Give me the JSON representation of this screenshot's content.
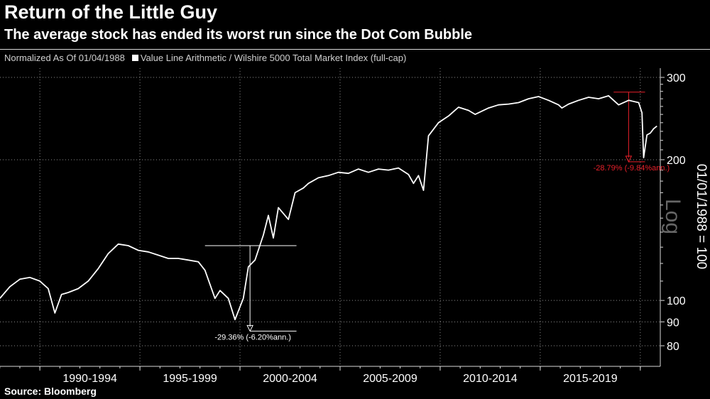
{
  "title": "Return of the Little Guy",
  "subtitle": "The average stock has ended its worst run since the Dot Com Bubble",
  "legend": {
    "note": "Normalized As Of 01/04/1988",
    "series_label": "Value Line Arithmetic / Wilshire 5000 Total Market Index (full-cap)"
  },
  "source": "Source: Bloomberg",
  "colors": {
    "background": "#000000",
    "series": "#ffffff",
    "grid": "#8c8c8c",
    "annotation_2000": "#ffffff",
    "annotation_2020": "#e8202a"
  },
  "chart_data": {
    "type": "line",
    "y_scale": "log",
    "ylabel": "01/01/1988 = 100",
    "y_scale_label": "Log",
    "ylim": [
      76,
      310
    ],
    "xlim": [
      "1988-01-04",
      "2020-12-31"
    ],
    "y_ticks": [
      300,
      200,
      100,
      90,
      80
    ],
    "x_tick_labels": [
      "1990-1994",
      "1995-1999",
      "2000-2004",
      "2005-2009",
      "2010-2014",
      "2015-2019"
    ],
    "series": [
      {
        "name": "Value Line Arithmetic / Wilshire 5000 Total Market Index (full-cap)",
        "x": [
          "1988-01",
          "1988-07",
          "1989-01",
          "1989-07",
          "1990-01",
          "1990-06",
          "1990-10",
          "1991-02",
          "1991-06",
          "1991-12",
          "1992-06",
          "1992-12",
          "1993-06",
          "1993-12",
          "1994-06",
          "1994-12",
          "1995-06",
          "1995-12",
          "1996-06",
          "1996-12",
          "1997-06",
          "1997-12",
          "1998-04",
          "1998-10",
          "1999-01",
          "1999-06",
          "1999-10",
          "2000-03",
          "2000-06",
          "2000-10",
          "2001-03",
          "2001-06",
          "2001-09",
          "2001-12",
          "2002-06",
          "2002-10",
          "2003-03",
          "2003-06",
          "2003-12",
          "2004-06",
          "2004-12",
          "2005-06",
          "2005-12",
          "2006-06",
          "2006-12",
          "2007-06",
          "2007-12",
          "2008-06",
          "2008-09",
          "2008-12",
          "2009-03",
          "2009-06",
          "2009-12",
          "2010-06",
          "2010-12",
          "2011-06",
          "2011-10",
          "2012-06",
          "2012-12",
          "2013-06",
          "2013-12",
          "2014-06",
          "2014-12",
          "2015-06",
          "2015-12",
          "2016-02",
          "2016-06",
          "2016-12",
          "2017-06",
          "2017-12",
          "2018-06",
          "2018-12",
          "2019-06",
          "2019-12",
          "2020-02",
          "2020-03",
          "2020-05",
          "2020-07",
          "2020-09",
          "2020-11"
        ],
        "values": [
          101,
          107,
          111,
          112,
          110,
          106,
          94,
          103,
          104,
          106,
          110,
          117,
          126,
          132,
          131,
          128,
          127,
          125,
          123,
          123,
          122,
          121,
          116,
          101,
          105,
          101,
          91,
          101,
          118,
          122,
          138,
          152,
          136,
          158,
          149,
          170,
          174,
          178,
          183,
          185,
          188,
          187,
          191,
          188,
          191,
          190,
          192,
          186,
          178,
          185,
          172,
          225,
          240,
          248,
          259,
          255,
          250,
          258,
          262,
          263,
          265,
          270,
          273,
          268,
          262,
          258,
          263,
          268,
          272,
          270,
          274,
          262,
          268,
          265,
          252,
          202,
          226,
          228,
          233,
          236
        ]
      }
    ],
    "annotations": [
      {
        "text": "-29.36% (-6.20%ann.)",
        "from_date": "1998-04",
        "from_value": 131,
        "to_date": "2002-10",
        "to_value": 86
      },
      {
        "text": "-28.79% (-9.84%ann.)",
        "from_date": "2018-09",
        "from_value": 279,
        "to_date": "2020-03",
        "to_value": 198
      }
    ]
  }
}
